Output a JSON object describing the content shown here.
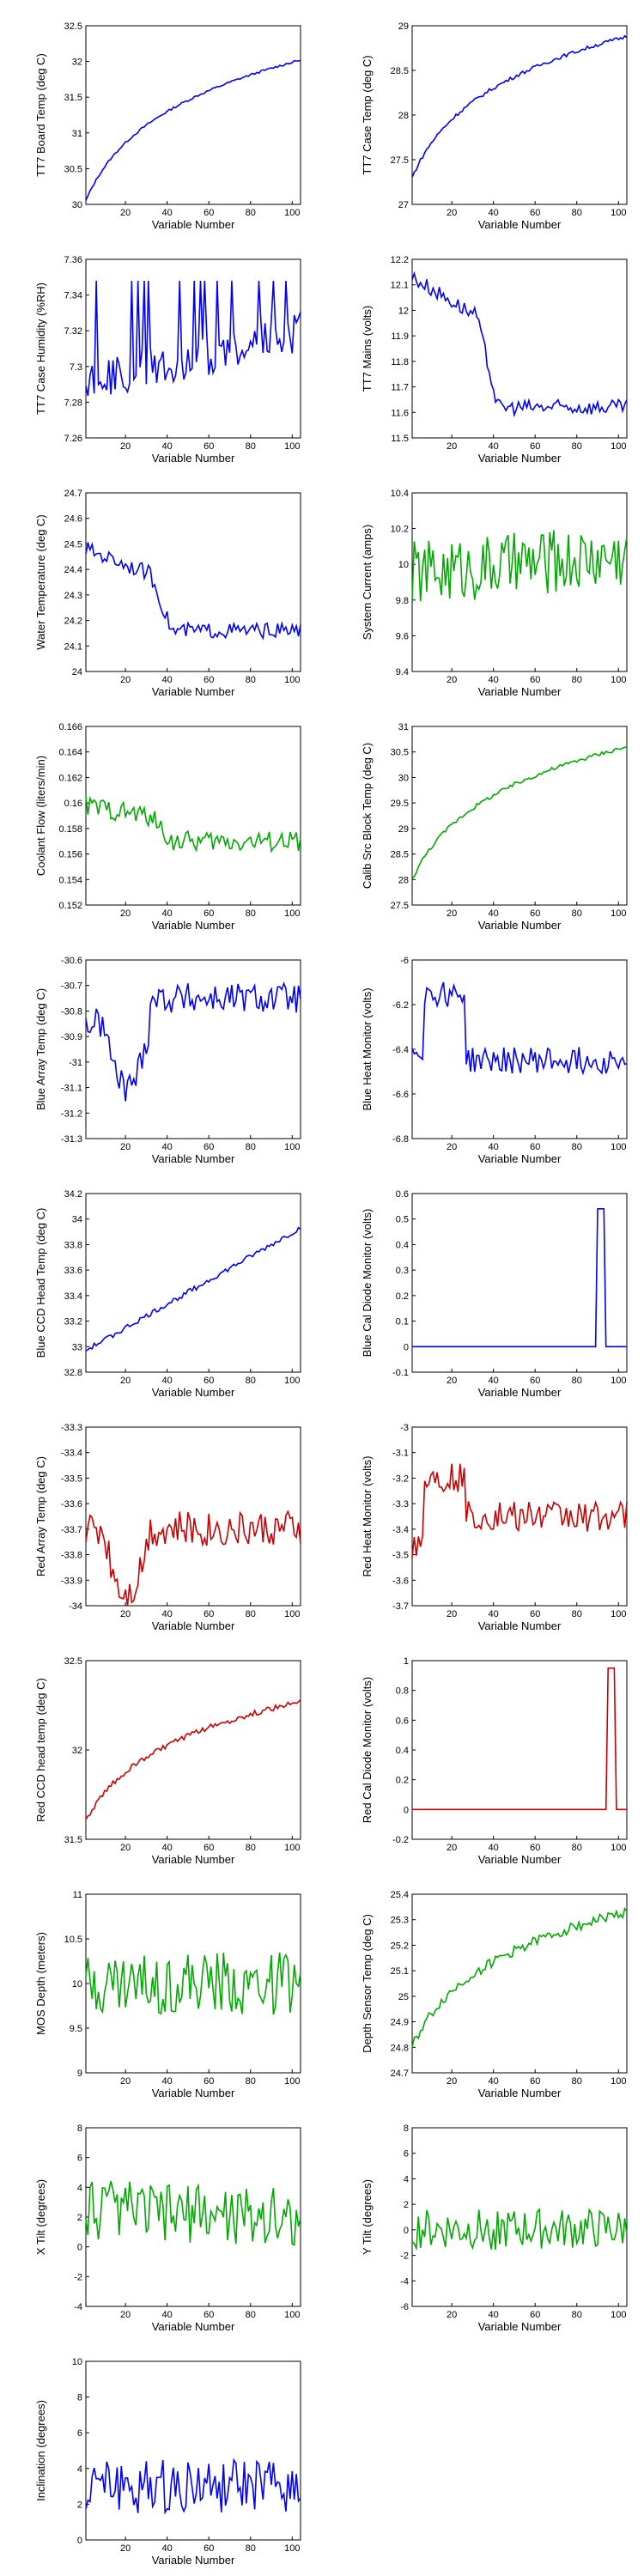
{
  "chart_data": [
    {
      "type": "line",
      "ylabel": "TT7 Board Temp (deg C)",
      "xlabel": "Variable Number",
      "xlim": [
        1,
        104
      ],
      "ylim": [
        30,
        32.5
      ],
      "xticks": [
        20,
        40,
        60,
        80,
        100
      ],
      "yticks": [
        30,
        30.5,
        31,
        31.5,
        32,
        32.5
      ],
      "color": "#0000ff",
      "shape": "log",
      "start": 30.05,
      "end": 32.02,
      "noise": 0.015
    },
    {
      "type": "line",
      "ylabel": "TT7 Case Temp (deg C)",
      "xlabel": "Variable Number",
      "xlim": [
        1,
        104
      ],
      "ylim": [
        27,
        29
      ],
      "xticks": [
        20,
        40,
        60,
        80,
        100
      ],
      "yticks": [
        27,
        27.5,
        28,
        28.5,
        29
      ],
      "color": "#0000ff",
      "shape": "log",
      "start": 27.3,
      "end": 28.88,
      "noise": 0.02
    },
    {
      "type": "line",
      "ylabel": "TT7 Case Humidity (%RH)",
      "xlabel": "Variable Number",
      "xlim": [
        1,
        104
      ],
      "ylim": [
        7.26,
        7.36
      ],
      "xticks": [
        20,
        40,
        60,
        80,
        100
      ],
      "yticks": [
        7.26,
        7.28,
        7.3,
        7.32,
        7.34,
        7.36
      ],
      "color": "#0000ff",
      "shape": "spiky",
      "start": 7.29,
      "end": 7.32,
      "noise": 0.012
    },
    {
      "type": "line",
      "ylabel": "TT7 Mains  (volts)",
      "xlabel": "Variable Number",
      "xlim": [
        1,
        104
      ],
      "ylim": [
        11.5,
        12.2
      ],
      "xticks": [
        20,
        40,
        60,
        80,
        100
      ],
      "yticks": [
        11.5,
        11.6,
        11.7,
        11.8,
        11.9,
        12,
        12.1,
        12.2
      ],
      "color": "#0000ff",
      "shape": "drop",
      "start": 12.13,
      "end": 11.62,
      "noise": 0.03
    },
    {
      "type": "line",
      "ylabel": "Water Temperature (deg C)",
      "xlabel": "Variable Number",
      "xlim": [
        1,
        104
      ],
      "ylim": [
        24,
        24.7
      ],
      "xticks": [
        20,
        40,
        60,
        80,
        100
      ],
      "yticks": [
        24,
        24.1,
        24.2,
        24.3,
        24.4,
        24.5,
        24.6,
        24.7
      ],
      "color": "#0000ff",
      "shape": "drop",
      "start": 24.48,
      "end": 24.16,
      "noise": 0.03
    },
    {
      "type": "line",
      "ylabel": "System Current (amps)",
      "xlabel": "Variable Number",
      "xlim": [
        1,
        104
      ],
      "ylim": [
        9.4,
        10.4
      ],
      "xticks": [
        20,
        40,
        60,
        80,
        100
      ],
      "yticks": [
        9.4,
        9.6,
        9.8,
        10,
        10.2,
        10.4
      ],
      "color": "#00aa00",
      "shape": "noisy",
      "start": 9.95,
      "end": 10.05,
      "noise": 0.18
    },
    {
      "type": "line",
      "ylabel": "Coolant Flow (liters/min)",
      "xlabel": "Variable Number",
      "xlim": [
        1,
        104
      ],
      "ylim": [
        0.152,
        0.166
      ],
      "xticks": [
        20,
        40,
        60,
        80,
        100
      ],
      "yticks": [
        0.152,
        0.154,
        0.156,
        0.158,
        0.16,
        0.162,
        0.164,
        0.166
      ],
      "color": "#00aa00",
      "shape": "drop",
      "start": 0.1598,
      "end": 0.157,
      "noise": 0.0008
    },
    {
      "type": "line",
      "ylabel": "Calib Src Block Temp (deg C)",
      "xlabel": "Variable Number",
      "xlim": [
        1,
        104
      ],
      "ylim": [
        27.5,
        31
      ],
      "xticks": [
        20,
        40,
        60,
        80,
        100
      ],
      "yticks": [
        27.5,
        28,
        28.5,
        29,
        29.5,
        30,
        30.5,
        31
      ],
      "color": "#00aa00",
      "shape": "log",
      "start": 28.0,
      "end": 30.6,
      "noise": 0.04
    },
    {
      "type": "line",
      "ylabel": "Blue Array Temp (deg C)",
      "xlabel": "Variable Number",
      "xlim": [
        1,
        104
      ],
      "ylim": [
        -31.3,
        -30.6
      ],
      "xticks": [
        20,
        40,
        60,
        80,
        100
      ],
      "yticks": [
        -31.3,
        -31.2,
        -31.1,
        -31,
        -30.9,
        -30.8,
        -30.7,
        -30.6
      ],
      "color": "#0000ff",
      "shape": "dip",
      "start": -30.85,
      "end": -30.75,
      "noise": 0.06
    },
    {
      "type": "line",
      "ylabel": "Blue Heat Monitor (volts)",
      "xlabel": "Variable Number",
      "xlim": [
        1,
        104
      ],
      "ylim": [
        -6.8,
        -6
      ],
      "xticks": [
        20,
        40,
        60,
        80,
        100
      ],
      "yticks": [
        -6.8,
        -6.6,
        -6.4,
        -6.2,
        -6
      ],
      "color": "#0000ff",
      "shape": "bump",
      "start": -6.4,
      "end": -6.45,
      "noise": 0.06
    },
    {
      "type": "line",
      "ylabel": "Blue CCD Head Temp (deg C)",
      "xlabel": "Variable Number",
      "xlim": [
        1,
        104
      ],
      "ylim": [
        32.8,
        34.2
      ],
      "xticks": [
        20,
        40,
        60,
        80,
        100
      ],
      "yticks": [
        32.8,
        33,
        33.2,
        33.4,
        33.6,
        33.8,
        34,
        34.2
      ],
      "color": "#0000ff",
      "shape": "linear",
      "start": 32.97,
      "end": 33.93,
      "noise": 0.02
    },
    {
      "type": "line",
      "ylabel": "Blue Cal Diode Monitor (volts)",
      "xlabel": "Variable Number",
      "xlim": [
        1,
        104
      ],
      "ylim": [
        -0.1,
        0.6
      ],
      "xticks": [
        20,
        40,
        60,
        80,
        100
      ],
      "yticks": [
        -0.1,
        0,
        0.1,
        0.2,
        0.3,
        0.4,
        0.5,
        0.6
      ],
      "color": "#0000ff",
      "shape": "pulse",
      "start": 0,
      "end": 0,
      "peak": 0.54,
      "pulse": [
        90,
        93
      ],
      "noise": 0.0
    },
    {
      "type": "line",
      "ylabel": "Red Array Temp (deg C)",
      "xlabel": "Variable Number",
      "xlim": [
        1,
        104
      ],
      "ylim": [
        -34,
        -33.3
      ],
      "xticks": [
        20,
        40,
        60,
        80,
        100
      ],
      "yticks": [
        -34,
        -33.9,
        -33.8,
        -33.7,
        -33.6,
        -33.5,
        -33.4,
        -33.3
      ],
      "color": "#cc0000",
      "shape": "dip",
      "start": -33.7,
      "end": -33.7,
      "noise": 0.07
    },
    {
      "type": "line",
      "ylabel": "Red Heat Monitor (volts)",
      "xlabel": "Variable Number",
      "xlim": [
        1,
        104
      ],
      "ylim": [
        -3.7,
        -3
      ],
      "xticks": [
        20,
        40,
        60,
        80,
        100
      ],
      "yticks": [
        -3.7,
        -3.6,
        -3.5,
        -3.4,
        -3.3,
        -3.2,
        -3.1,
        -3
      ],
      "color": "#cc0000",
      "shape": "bump",
      "start": -3.45,
      "end": -3.35,
      "noise": 0.06
    },
    {
      "type": "line",
      "ylabel": "Red CCD head temp (deg C)",
      "xlabel": "Variable Number",
      "xlim": [
        1,
        104
      ],
      "ylim": [
        31.5,
        32.5
      ],
      "xticks": [
        20,
        40,
        60,
        80,
        100
      ],
      "yticks": [
        31.5,
        32,
        32.5
      ],
      "color": "#cc0000",
      "shape": "log",
      "start": 31.6,
      "end": 32.27,
      "noise": 0.015
    },
    {
      "type": "line",
      "ylabel": "Red Cal Diode Monitor (volts)",
      "xlabel": "Variable Number",
      "xlim": [
        1,
        104
      ],
      "ylim": [
        -0.2,
        1
      ],
      "xticks": [
        20,
        40,
        60,
        80,
        100
      ],
      "yticks": [
        -0.2,
        0,
        0.2,
        0.4,
        0.6,
        0.8,
        1
      ],
      "color": "#cc0000",
      "shape": "pulse",
      "start": 0,
      "end": 0,
      "peak": 0.95,
      "pulse": [
        95,
        98
      ],
      "noise": 0.0
    },
    {
      "type": "line",
      "ylabel": "MOS Depth  (meters)",
      "xlabel": "Variable Number",
      "xlim": [
        1,
        104
      ],
      "ylim": [
        9,
        11
      ],
      "xticks": [
        20,
        40,
        60,
        80,
        100
      ],
      "yticks": [
        9,
        9.5,
        10,
        10.5,
        11
      ],
      "color": "#00aa00",
      "shape": "noisy",
      "start": 10.0,
      "end": 10.0,
      "noise": 0.35
    },
    {
      "type": "line",
      "ylabel": "Depth Sensor Temp (deg C)",
      "xlabel": "Variable Number",
      "xlim": [
        1,
        104
      ],
      "ylim": [
        24.7,
        25.4
      ],
      "xticks": [
        20,
        40,
        60,
        80,
        100
      ],
      "yticks": [
        24.7,
        24.8,
        24.9,
        25,
        25.1,
        25.2,
        25.3,
        25.4
      ],
      "color": "#00aa00",
      "shape": "log",
      "start": 24.8,
      "end": 25.33,
      "noise": 0.02
    },
    {
      "type": "line",
      "ylabel": "X Tilt  (degrees)",
      "xlabel": "Variable Number",
      "xlim": [
        1,
        104
      ],
      "ylim": [
        -4,
        8
      ],
      "xticks": [
        20,
        40,
        60,
        80,
        100
      ],
      "yticks": [
        -4,
        -2,
        0,
        2,
        4,
        6,
        8
      ],
      "color": "#00aa00",
      "shape": "noisy",
      "start": 2.5,
      "end": 2.0,
      "noise": 2.0
    },
    {
      "type": "line",
      "ylabel": "Y Tilt  (degrees)",
      "xlabel": "Variable Number",
      "xlim": [
        1,
        104
      ],
      "ylim": [
        -6,
        8
      ],
      "xticks": [
        20,
        40,
        60,
        80,
        100
      ],
      "yticks": [
        -6,
        -4,
        -2,
        0,
        2,
        4,
        6,
        8
      ],
      "color": "#00aa00",
      "shape": "noisy",
      "start": 0.0,
      "end": 0.0,
      "noise": 1.6
    },
    {
      "type": "line",
      "ylabel": "Inclination  (degrees)",
      "xlabel": "Variable Number",
      "xlim": [
        1,
        104
      ],
      "ylim": [
        0,
        10
      ],
      "xticks": [
        20,
        40,
        60,
        80,
        100
      ],
      "yticks": [
        0,
        2,
        4,
        6,
        8,
        10
      ],
      "color": "#0000ff",
      "shape": "noisy",
      "start": 3.0,
      "end": 3.0,
      "noise": 1.5
    }
  ]
}
